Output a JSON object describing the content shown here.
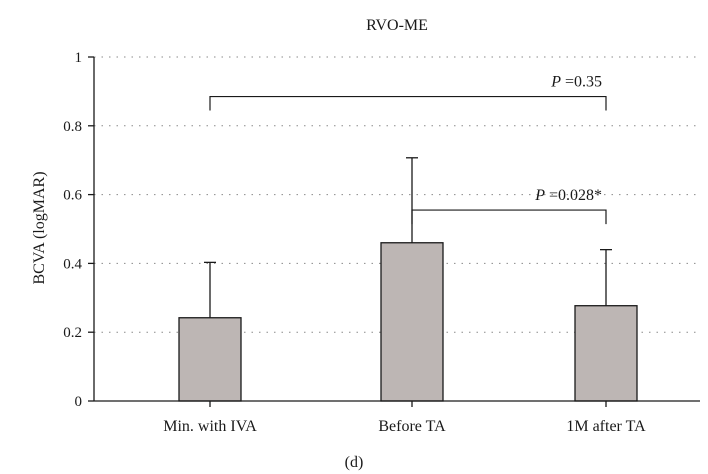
{
  "chart_data": {
    "type": "bar",
    "title": "RVO-ME",
    "xlabel": "",
    "ylabel": "BCVA (logMAR)",
    "ylim": [
      0,
      1
    ],
    "yticks": [
      0,
      0.2,
      0.4,
      0.6,
      0.8,
      1
    ],
    "ytick_labels": [
      "0",
      "0.2",
      "0.4",
      "0.6",
      "0.8",
      "1"
    ],
    "grid": true,
    "categories": [
      "Min. with IVA",
      "Before TA",
      "1M after TA"
    ],
    "values": [
      0.242,
      0.46,
      0.277
    ],
    "error_upper": [
      0.403,
      0.707,
      0.44
    ],
    "bar_color": "#bdb6b4",
    "annotations": [
      {
        "from": 0,
        "to": 2,
        "p_label": "P",
        "p_value": " =0.35",
        "y": 0.885
      },
      {
        "from": 1,
        "to": 2,
        "p_label": "P",
        "p_value": " =0.028*",
        "y": 0.555
      }
    ],
    "panel_label": "(d)"
  }
}
